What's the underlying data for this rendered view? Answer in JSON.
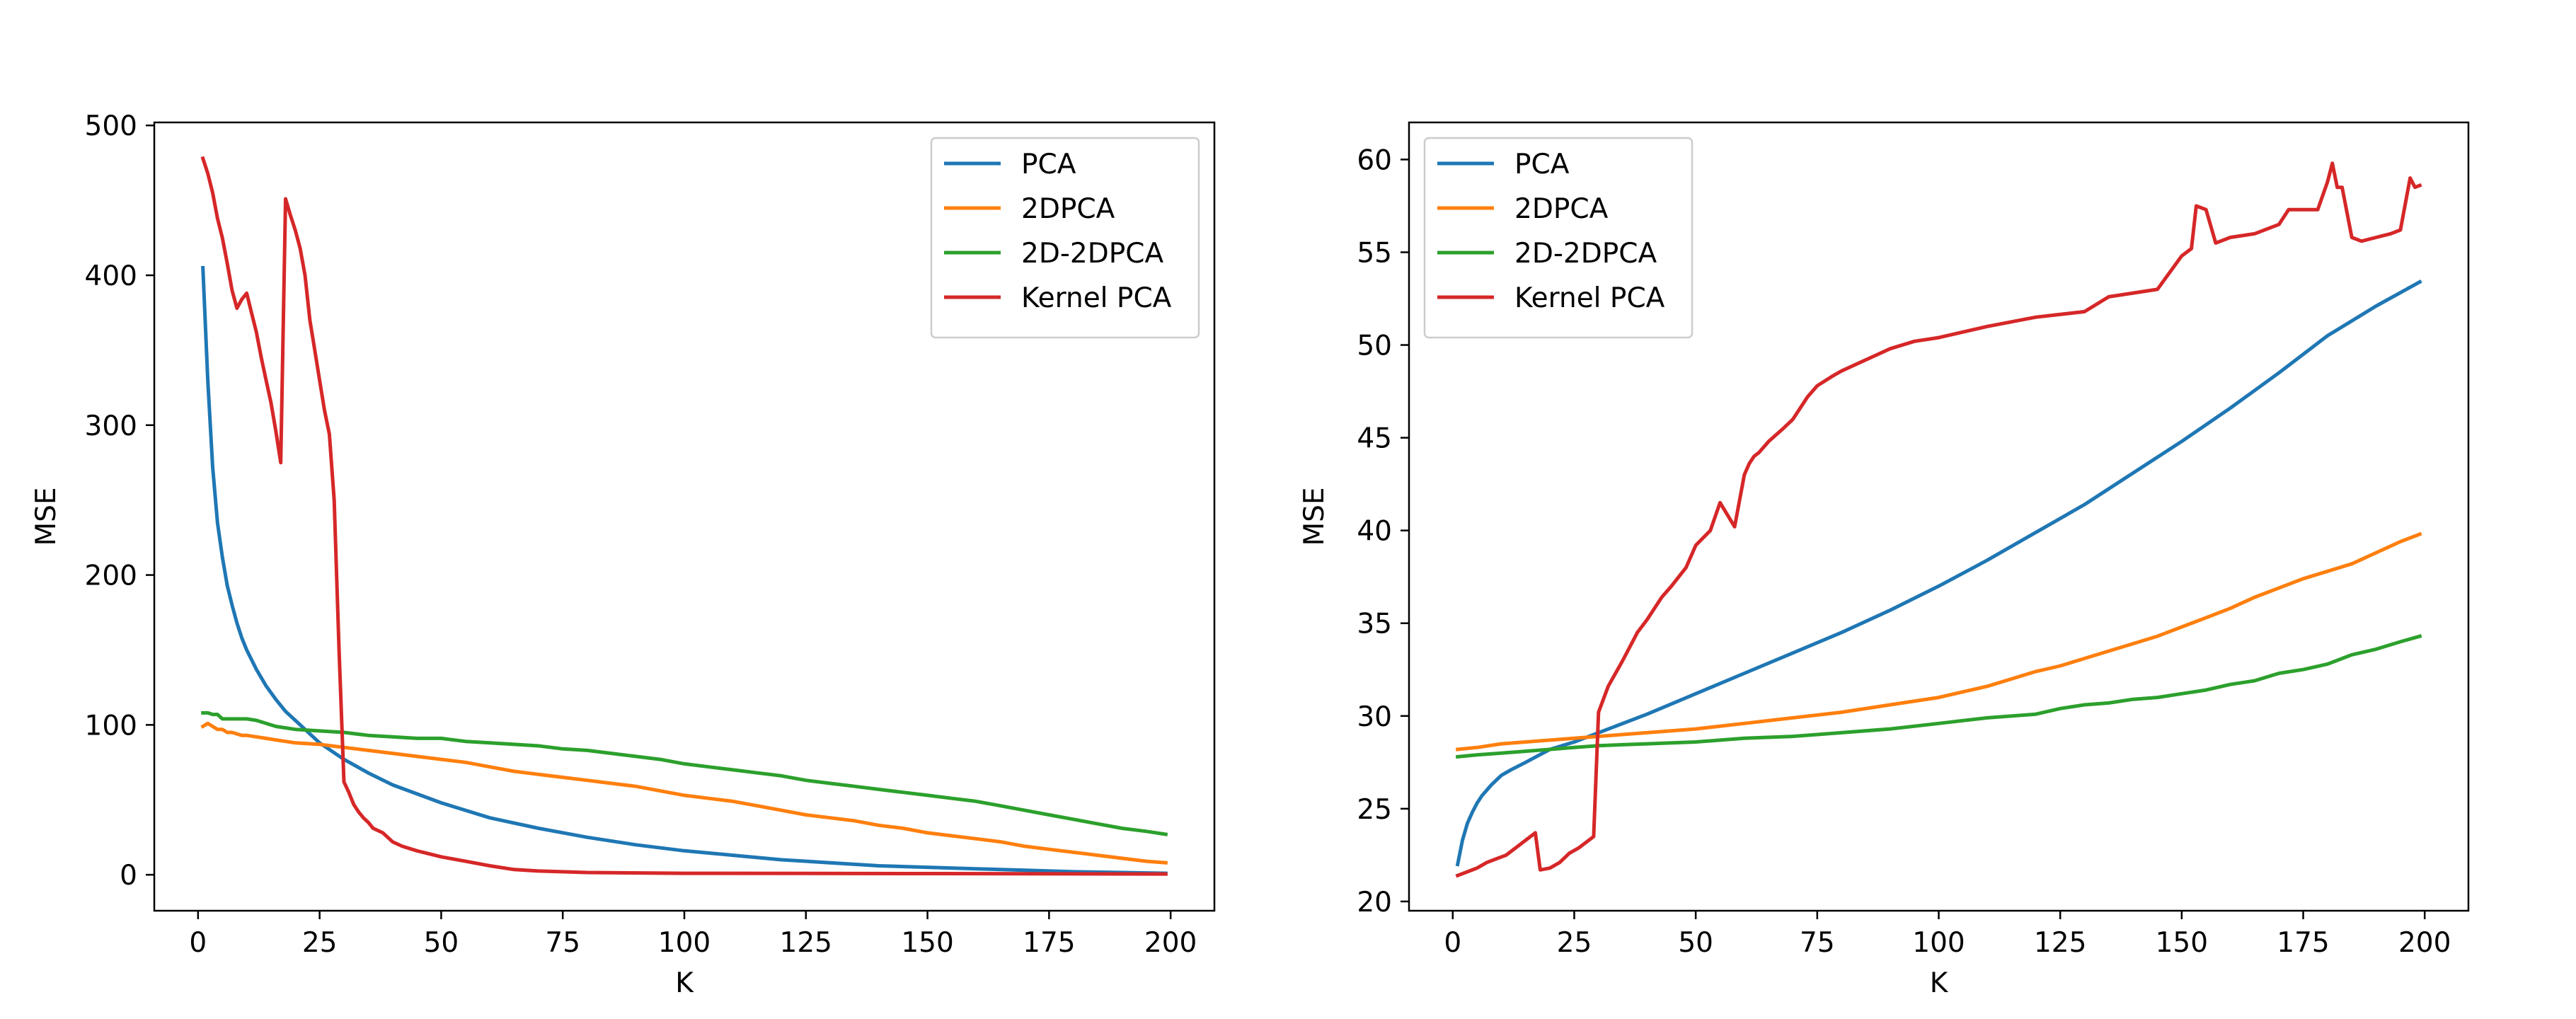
{
  "chart_data": [
    {
      "type": "line",
      "title": "",
      "xlabel": "K",
      "ylabel": "MSE",
      "xlim": [
        -9,
        209
      ],
      "ylim": [
        -24,
        502
      ],
      "xticks": [
        0,
        25,
        50,
        75,
        100,
        125,
        150,
        175,
        200
      ],
      "yticks": [
        0,
        100,
        200,
        300,
        400,
        500
      ],
      "grid": false,
      "legend_position": "top-right",
      "series": [
        {
          "name": "PCA",
          "color": "#1f77b4",
          "x": [
            1,
            2,
            3,
            4,
            5,
            6,
            7,
            8,
            9,
            10,
            12,
            14,
            16,
            18,
            20,
            25,
            30,
            35,
            40,
            50,
            60,
            70,
            80,
            90,
            100,
            110,
            120,
            130,
            140,
            150,
            160,
            170,
            180,
            190,
            199
          ],
          "y": [
            405,
            330,
            272,
            235,
            212,
            193,
            180,
            168,
            158,
            150,
            137,
            126,
            117,
            109,
            103,
            88,
            77,
            68,
            60,
            48,
            38,
            31,
            25,
            20,
            16,
            13,
            10,
            8,
            6,
            5,
            4,
            3,
            2,
            1.5,
            1
          ]
        },
        {
          "name": "2DPCA",
          "color": "#ff7f0e",
          "x": [
            1,
            2,
            3,
            4,
            5,
            6,
            7,
            8,
            9,
            10,
            12,
            14,
            16,
            18,
            20,
            25,
            30,
            35,
            40,
            45,
            50,
            55,
            60,
            65,
            70,
            75,
            80,
            85,
            90,
            95,
            100,
            105,
            110,
            115,
            120,
            125,
            130,
            135,
            140,
            145,
            150,
            155,
            160,
            165,
            170,
            175,
            180,
            185,
            190,
            195,
            199
          ],
          "y": [
            99,
            101,
            99,
            97,
            97,
            95,
            95,
            94,
            93,
            93,
            92,
            91,
            90,
            89,
            88,
            87,
            85,
            83,
            81,
            79,
            77,
            75,
            72,
            69,
            67,
            65,
            63,
            61,
            59,
            56,
            53,
            51,
            49,
            46,
            43,
            40,
            38,
            36,
            33,
            31,
            28,
            26,
            24,
            22,
            19,
            17,
            15,
            13,
            11,
            9,
            8
          ]
        },
        {
          "name": "2D-2DPCA",
          "color": "#2ca02c",
          "x": [
            1,
            2,
            3,
            4,
            5,
            6,
            8,
            10,
            12,
            14,
            16,
            18,
            20,
            25,
            30,
            35,
            40,
            45,
            50,
            55,
            60,
            65,
            70,
            75,
            80,
            85,
            90,
            95,
            100,
            105,
            110,
            115,
            120,
            125,
            130,
            135,
            140,
            145,
            150,
            155,
            160,
            165,
            170,
            175,
            180,
            185,
            190,
            195,
            199
          ],
          "y": [
            108,
            108,
            107,
            107,
            104,
            104,
            104,
            104,
            103,
            101,
            99,
            98,
            97,
            96,
            95,
            93,
            92,
            91,
            91,
            89,
            88,
            87,
            86,
            84,
            83,
            81,
            79,
            77,
            74,
            72,
            70,
            68,
            66,
            63,
            61,
            59,
            57,
            55,
            53,
            51,
            49,
            46,
            43,
            40,
            37,
            34,
            31,
            29,
            27
          ]
        },
        {
          "name": "Kernel PCA",
          "color": "#d62728",
          "x": [
            1,
            2,
            3,
            4,
            5,
            6,
            7,
            8,
            9,
            10,
            11,
            12,
            13,
            14,
            15,
            16,
            17,
            18,
            19,
            20,
            21,
            22,
            23,
            24,
            25,
            26,
            27,
            28,
            29,
            30,
            31,
            32,
            33,
            34,
            35,
            36,
            38,
            40,
            42,
            45,
            50,
            55,
            60,
            62,
            65,
            70,
            80,
            100,
            150,
            199
          ],
          "y": [
            478,
            468,
            455,
            438,
            425,
            408,
            390,
            378,
            384,
            388,
            375,
            362,
            345,
            330,
            315,
            296,
            275,
            451,
            440,
            430,
            418,
            400,
            370,
            350,
            330,
            310,
            294,
            250,
            150,
            62,
            55,
            47,
            42,
            38,
            35,
            31,
            28,
            22,
            19,
            16,
            12,
            9,
            6,
            5,
            3.5,
            2.5,
            1.5,
            1,
            0.8,
            0.5
          ]
        }
      ]
    },
    {
      "type": "line",
      "title": "",
      "xlabel": "K",
      "ylabel": "MSE",
      "xlim": [
        -9,
        209
      ],
      "ylim": [
        19.5,
        62
      ],
      "xticks": [
        0,
        25,
        50,
        75,
        100,
        125,
        150,
        175,
        200
      ],
      "yticks": [
        20,
        25,
        30,
        35,
        40,
        45,
        50,
        55,
        60
      ],
      "grid": false,
      "legend_position": "top-left",
      "series": [
        {
          "name": "PCA",
          "color": "#1f77b4",
          "x": [
            1,
            2,
            3,
            4,
            5,
            6,
            8,
            10,
            12,
            15,
            20,
            25,
            30,
            40,
            50,
            60,
            70,
            80,
            90,
            100,
            110,
            120,
            130,
            140,
            150,
            160,
            170,
            180,
            190,
            199
          ],
          "y": [
            22,
            23.3,
            24.2,
            24.8,
            25.3,
            25.7,
            26.3,
            26.8,
            27.1,
            27.5,
            28.2,
            28.6,
            29.1,
            30.1,
            31.2,
            32.3,
            33.4,
            34.5,
            35.7,
            37,
            38.4,
            39.9,
            41.4,
            43.1,
            44.8,
            46.6,
            48.5,
            50.5,
            52.1,
            53.4
          ]
        },
        {
          "name": "2DPCA",
          "color": "#ff7f0e",
          "x": [
            1,
            5,
            10,
            15,
            20,
            25,
            30,
            40,
            50,
            60,
            70,
            80,
            90,
            100,
            105,
            110,
            115,
            120,
            125,
            130,
            135,
            140,
            145,
            150,
            155,
            160,
            165,
            170,
            175,
            180,
            185,
            190,
            195,
            199
          ],
          "y": [
            28.2,
            28.3,
            28.5,
            28.6,
            28.7,
            28.8,
            28.9,
            29.1,
            29.3,
            29.6,
            29.9,
            30.2,
            30.6,
            31,
            31.3,
            31.6,
            32,
            32.4,
            32.7,
            33.1,
            33.5,
            33.9,
            34.3,
            34.8,
            35.3,
            35.8,
            36.4,
            36.9,
            37.4,
            37.8,
            38.2,
            38.8,
            39.4,
            39.8
          ]
        },
        {
          "name": "2D-2DPCA",
          "color": "#2ca02c",
          "x": [
            1,
            5,
            10,
            15,
            20,
            25,
            30,
            40,
            50,
            60,
            70,
            80,
            90,
            100,
            110,
            120,
            125,
            130,
            135,
            140,
            145,
            150,
            155,
            160,
            165,
            170,
            175,
            180,
            185,
            190,
            195,
            199
          ],
          "y": [
            27.8,
            27.9,
            28,
            28.1,
            28.2,
            28.3,
            28.4,
            28.5,
            28.6,
            28.8,
            28.9,
            29.1,
            29.3,
            29.6,
            29.9,
            30.1,
            30.4,
            30.6,
            30.7,
            30.9,
            31,
            31.2,
            31.4,
            31.7,
            31.9,
            32.3,
            32.5,
            32.8,
            33.3,
            33.6,
            34,
            34.3
          ]
        },
        {
          "name": "Kernel PCA",
          "color": "#d62728",
          "x": [
            1,
            3,
            5,
            7,
            9,
            11,
            13,
            15,
            17,
            18,
            20,
            22,
            24,
            26,
            28,
            29,
            30,
            32,
            35,
            38,
            40,
            43,
            45,
            48,
            50,
            53,
            55,
            58,
            60,
            61,
            62,
            63,
            65,
            68,
            70,
            73,
            75,
            78,
            80,
            85,
            90,
            95,
            100,
            110,
            120,
            130,
            135,
            140,
            145,
            150,
            152,
            153,
            155,
            157,
            160,
            165,
            170,
            172,
            175,
            178,
            180,
            181,
            182,
            183,
            185,
            187,
            190,
            193,
            195,
            197,
            198,
            199
          ],
          "y": [
            21.4,
            21.6,
            21.8,
            22.1,
            22.3,
            22.5,
            22.9,
            23.3,
            23.7,
            21.7,
            21.8,
            22.1,
            22.6,
            22.9,
            23.3,
            23.5,
            30.2,
            31.6,
            33,
            34.5,
            35.2,
            36.4,
            37,
            38,
            39.2,
            40,
            41.5,
            40.2,
            43,
            43.6,
            44,
            44.2,
            44.8,
            45.5,
            46,
            47.2,
            47.8,
            48.3,
            48.6,
            49.2,
            49.8,
            50.2,
            50.4,
            51,
            51.5,
            51.8,
            52.6,
            52.8,
            53,
            54.8,
            55.2,
            57.5,
            57.3,
            55.5,
            55.8,
            56,
            56.5,
            57.3,
            57.3,
            57.3,
            58.8,
            59.8,
            58.5,
            58.5,
            55.8,
            55.6,
            55.8,
            56,
            56.2,
            59,
            58.5,
            58.6
          ]
        }
      ]
    }
  ]
}
